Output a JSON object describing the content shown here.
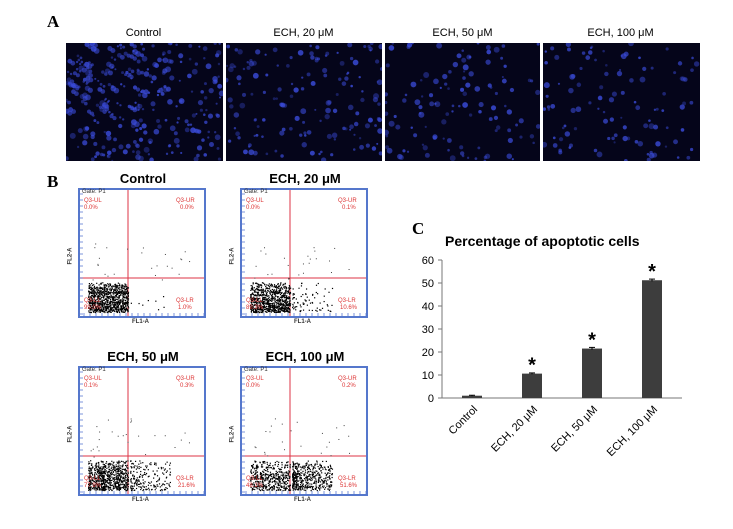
{
  "panels": {
    "a": {
      "letter": "A",
      "labels": [
        "Control",
        "ECH, 20 μM",
        "ECH, 50 μM",
        "ECH, 100 μM"
      ],
      "cell_color": "#3a4bd8"
    },
    "b": {
      "letter": "B",
      "plots": [
        {
          "title": "Control",
          "gate": "Gate: P1",
          "ul": "Q3-UL",
          "ul_v": "0.0%",
          "ur": "Q3-UR",
          "ur_v": "0.0%",
          "ll": "Q3-LL",
          "ll_v": "99.0%",
          "lr": "Q3-LR",
          "lr_v": "1.0%"
        },
        {
          "title": "ECH, 20 μM",
          "gate": "Gate: P1",
          "ul": "Q3-UL",
          "ul_v": "0.0%",
          "ur": "Q3-UR",
          "ur_v": "0.1%",
          "ll": "Q3-LL",
          "ll_v": "89.3%",
          "lr": "Q3-LR",
          "lr_v": "10.6%"
        },
        {
          "title": "ECH, 50 μM",
          "gate": "Gate: P1",
          "ul": "Q3-UL",
          "ul_v": "0.1%",
          "ur": "Q3-UR",
          "ur_v": "0.3%",
          "ll": "Q3-LL",
          "ll_v": "77.9%",
          "lr": "Q3-LR",
          "lr_v": "21.6%"
        },
        {
          "title": "ECH, 100 μM",
          "gate": "Gate: P1",
          "ul": "Q3-UL",
          "ul_v": "0.0%",
          "ur": "Q3-UR",
          "ur_v": "0.2%",
          "ll": "Q3-LL",
          "ll_v": "48.1%",
          "lr": "Q3-LR",
          "lr_v": "51.6%"
        }
      ],
      "xaxis": "FL1-A",
      "yaxis": "FL2-A"
    },
    "c": {
      "letter": "C"
    }
  },
  "chart_data": {
    "type": "bar",
    "title": "Percentage of apoptotic cells",
    "categories": [
      "Control",
      "ECH, 20 μM",
      "ECH, 50 μM",
      "ECH, 100 μM"
    ],
    "values": [
      1,
      10.6,
      21.5,
      51.2
    ],
    "errors": [
      0.2,
      0.3,
      0.5,
      0.5
    ],
    "significance": [
      "",
      "*",
      "*",
      "*"
    ],
    "ylim": [
      0,
      60
    ],
    "yticks": [
      0,
      10,
      20,
      30,
      40,
      50,
      60
    ],
    "bar_color": "#3d3d3d",
    "grid": false,
    "legend": "none"
  }
}
